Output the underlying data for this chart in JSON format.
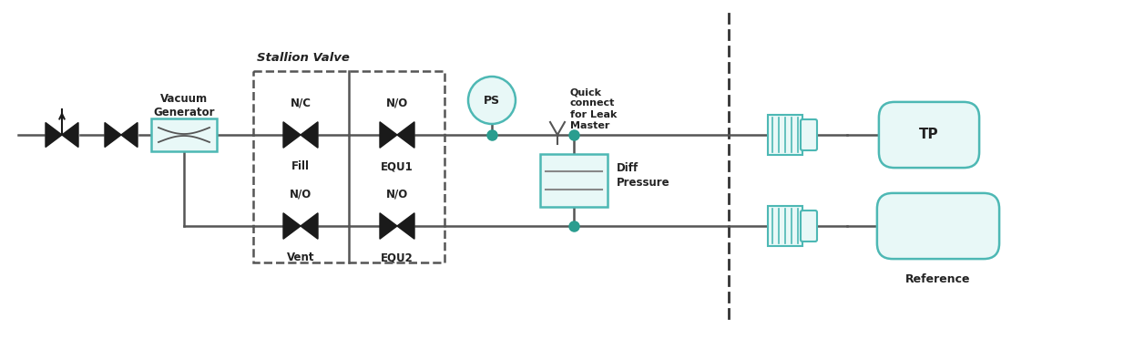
{
  "bg_color": "#ffffff",
  "line_color": "#555555",
  "teal_color": "#4db8b4",
  "dot_color": "#2a9d8f",
  "valve_fill": "#1a1a1a",
  "figsize": [
    12.45,
    3.72
  ],
  "dpi": 100,
  "labels": {
    "vacuum_generator": "Vacuum\nGenerator",
    "stallion_valve": "Stallion Valve",
    "nc": "N/C",
    "no1": "N/O",
    "no2": "N/O",
    "no3": "N/O",
    "fill": "Fill",
    "equ1": "EQU1",
    "vent": "Vent",
    "equ2": "EQU2",
    "ps": "PS",
    "quick_connect": "Quick\nconnect\nfor Leak\nMaster",
    "diff_pressure": "Diff\nPressure",
    "tp": "TP",
    "reference": "Reference"
  }
}
